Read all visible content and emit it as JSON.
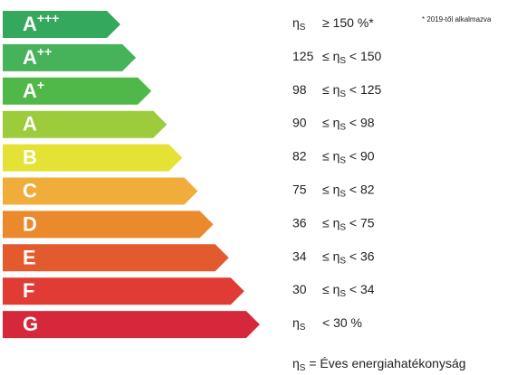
{
  "footnote": "* 2019-től alkalmazva",
  "rows": [
    {
      "letter": "A",
      "sup": "+++",
      "color": "#34a85c",
      "condition": [
        [
          {
            "t": "η"
          },
          {
            "s": "S"
          }
        ],
        [
          {
            "t": "≥ 150 %*"
          }
        ]
      ]
    },
    {
      "letter": "A",
      "sup": "++",
      "color": "#46b25a",
      "condition": [
        [
          {
            "t": "125"
          }
        ],
        [
          {
            "t": "≤ η"
          },
          {
            "s": "S"
          },
          {
            "t": " < 150"
          }
        ]
      ]
    },
    {
      "letter": "A",
      "sup": "+",
      "color": "#4fb848",
      "condition": [
        [
          {
            "t": "98"
          }
        ],
        [
          {
            "t": "≤ η"
          },
          {
            "s": "S"
          },
          {
            "t": " < 125"
          }
        ]
      ]
    },
    {
      "letter": "A",
      "color": "#9ccb3c",
      "condition": [
        [
          {
            "t": "90"
          }
        ],
        [
          {
            "t": "≤ η"
          },
          {
            "s": "S"
          },
          {
            "t": " < 98"
          }
        ]
      ]
    },
    {
      "letter": "B",
      "color": "#e4e234",
      "condition": [
        [
          {
            "t": "82"
          }
        ],
        [
          {
            "t": "≤ η"
          },
          {
            "s": "S"
          },
          {
            "t": " < 90"
          }
        ]
      ]
    },
    {
      "letter": "C",
      "color": "#f0ad3c",
      "condition": [
        [
          {
            "t": "75"
          }
        ],
        [
          {
            "t": "≤ η"
          },
          {
            "s": "S"
          },
          {
            "t": " < 82"
          }
        ]
      ]
    },
    {
      "letter": "D",
      "color": "#ea8a2d",
      "condition": [
        [
          {
            "t": "36"
          }
        ],
        [
          {
            "t": "≤ η"
          },
          {
            "s": "S"
          },
          {
            "t": " < 75"
          }
        ]
      ]
    },
    {
      "letter": "E",
      "color": "#e25a2e",
      "condition": [
        [
          {
            "t": "34"
          }
        ],
        [
          {
            "t": "≤ η"
          },
          {
            "s": "S"
          },
          {
            "t": " < 36"
          }
        ]
      ]
    },
    {
      "letter": "F",
      "color": "#e03c33",
      "condition": [
        [
          {
            "t": "30"
          }
        ],
        [
          {
            "t": "≤ η"
          },
          {
            "s": "S"
          },
          {
            "t": " < 34"
          }
        ]
      ]
    },
    {
      "letter": "G",
      "color": "#d6283b",
      "condition": [
        [
          {
            "t": "η"
          },
          {
            "s": "S"
          }
        ],
        [
          {
            "t": "< 30 %"
          }
        ]
      ]
    }
  ],
  "legend": [
    {
      "t": "η"
    },
    {
      "s": "S"
    },
    {
      "t": " = Éves energiahatékonyság"
    }
  ]
}
